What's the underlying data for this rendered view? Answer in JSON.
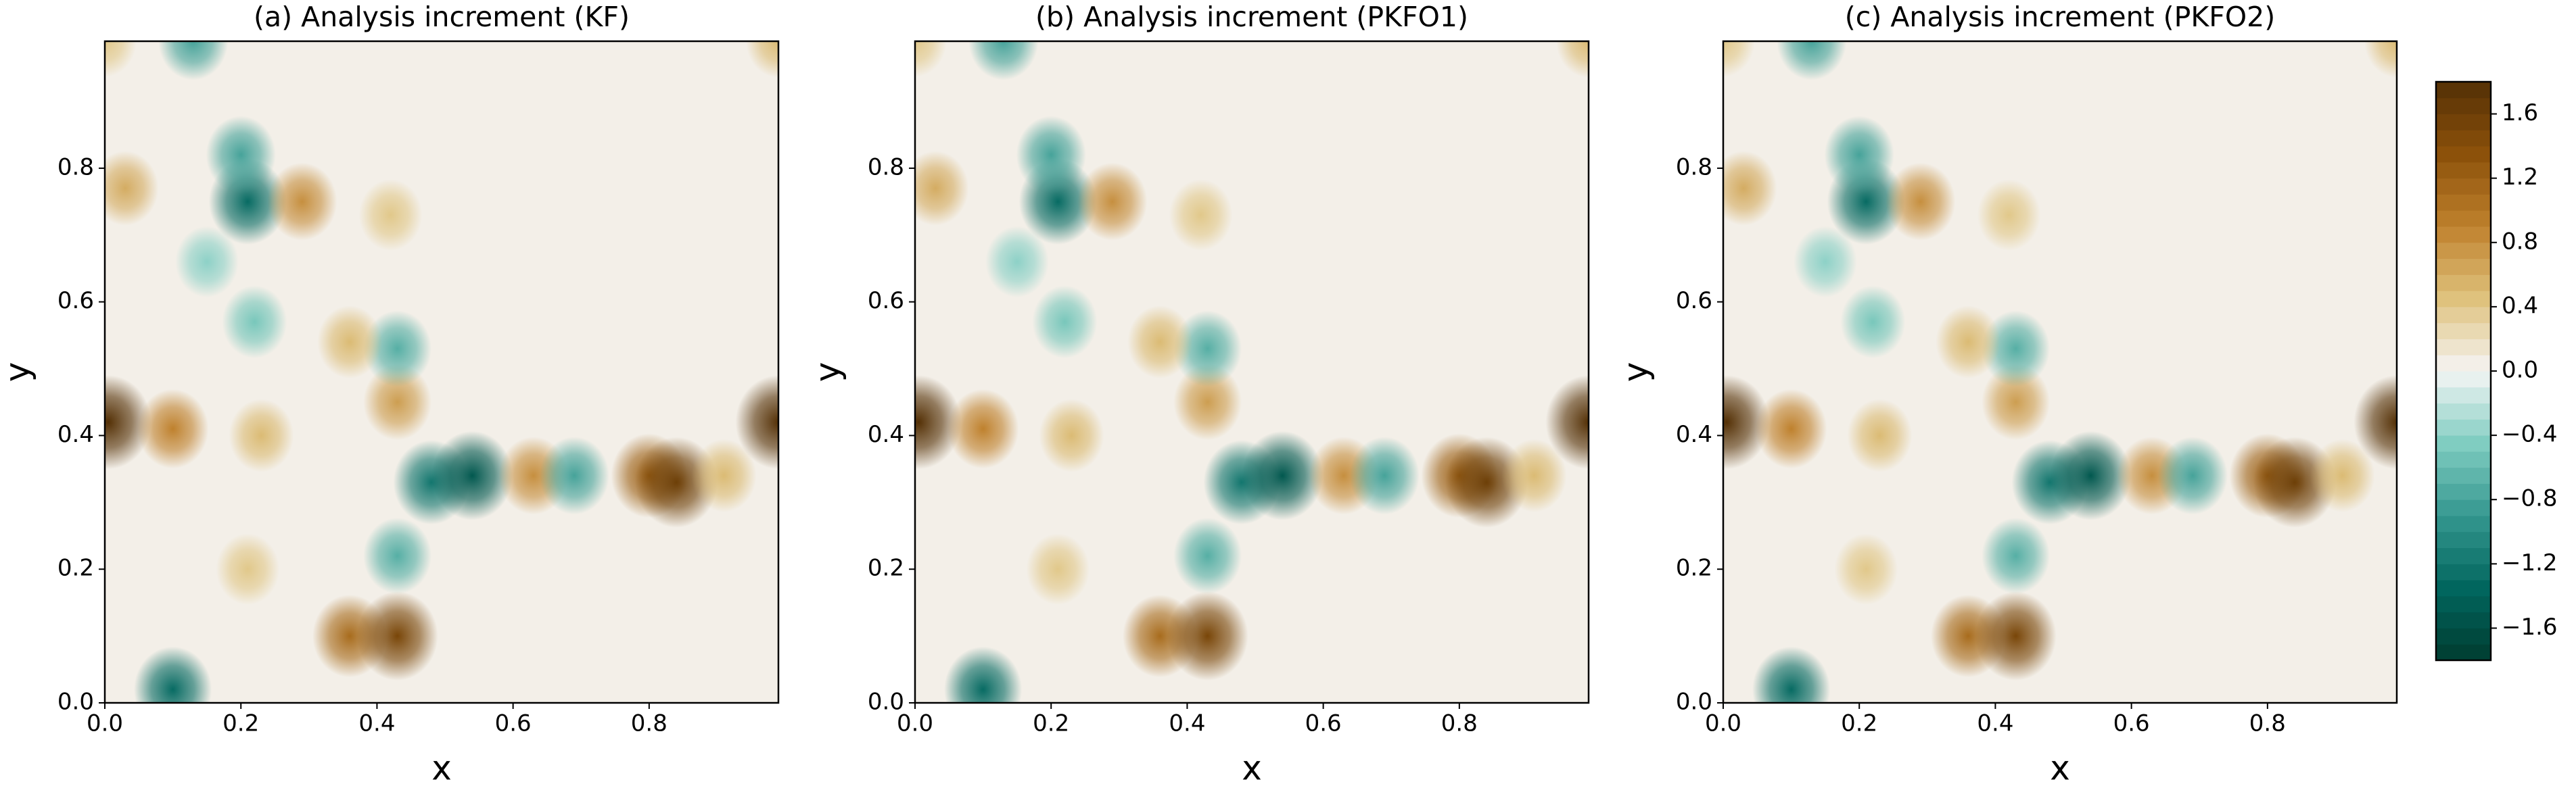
{
  "chart_data": [
    {
      "type": "contour",
      "title": "(a) Analysis increment (KF)",
      "xlabel": "x",
      "ylabel": "y",
      "xlim": [
        0,
        0.99
      ],
      "ylim": [
        0,
        0.99
      ],
      "xticks": [
        {
          "value": 0,
          "label": "0.0"
        },
        0.2,
        0.4,
        0.6,
        0.8
      ],
      "yticks": [
        {
          "value": 0,
          "label": "0.0"
        },
        0.2,
        0.4,
        0.6,
        0.8
      ],
      "background_value": 0.05,
      "features": [
        {
          "x": 0.21,
          "y": 0.75,
          "value": -1.3
        },
        {
          "x": 0.2,
          "y": 0.82,
          "value": -0.8
        },
        {
          "x": 0.29,
          "y": 0.75,
          "value": 0.8
        },
        {
          "x": 0.42,
          "y": 0.73,
          "value": 0.4
        },
        {
          "x": 0.005,
          "y": 0.42,
          "value": 1.8
        },
        {
          "x": 0.1,
          "y": 0.41,
          "value": 0.9
        },
        {
          "x": 0.43,
          "y": 0.45,
          "value": 0.7
        },
        {
          "x": 0.43,
          "y": 0.53,
          "value": -0.7
        },
        {
          "x": 0.48,
          "y": 0.33,
          "value": -1.2
        },
        {
          "x": 0.54,
          "y": 0.34,
          "value": -1.5
        },
        {
          "x": 0.63,
          "y": 0.34,
          "value": 0.8
        },
        {
          "x": 0.69,
          "y": 0.34,
          "value": -0.8
        },
        {
          "x": 0.8,
          "y": 0.34,
          "value": 1.2
        },
        {
          "x": 0.84,
          "y": 0.33,
          "value": 1.6
        },
        {
          "x": 0.91,
          "y": 0.34,
          "value": 0.5
        },
        {
          "x": 0.43,
          "y": 0.22,
          "value": -0.7
        },
        {
          "x": 0.36,
          "y": 0.1,
          "value": 1.1
        },
        {
          "x": 0.43,
          "y": 0.1,
          "value": 1.5
        },
        {
          "x": 0.1,
          "y": 0.02,
          "value": -1.3
        },
        {
          "x": 0.13,
          "y": 0.99,
          "value": -0.8
        },
        {
          "x": 0.99,
          "y": 0.42,
          "value": 1.8
        },
        {
          "x": 0.22,
          "y": 0.57,
          "value": -0.5
        },
        {
          "x": 0.36,
          "y": 0.54,
          "value": 0.5
        },
        {
          "x": 0.23,
          "y": 0.4,
          "value": 0.5
        },
        {
          "x": 0.21,
          "y": 0.2,
          "value": 0.4
        },
        {
          "x": 0.15,
          "y": 0.66,
          "value": -0.4
        },
        {
          "x": 0.03,
          "y": 0.77,
          "value": 0.6
        },
        {
          "x": 0.99,
          "y": 0.99,
          "value": 0.5
        },
        {
          "x": 0.0,
          "y": 0.99,
          "value": 0.4
        }
      ]
    },
    {
      "type": "contour",
      "title": "(b) Analysis increment (PKFO1)",
      "xlabel": "x",
      "ylabel": "y",
      "xlim": [
        0,
        0.99
      ],
      "ylim": [
        0,
        0.99
      ],
      "xticks": [
        {
          "value": 0,
          "label": "0.0"
        },
        0.2,
        0.4,
        0.6,
        0.8
      ],
      "yticks": [
        {
          "value": 0,
          "label": "0.0"
        },
        0.2,
        0.4,
        0.6,
        0.8
      ],
      "background_value": 0.05,
      "features": [
        {
          "x": 0.21,
          "y": 0.75,
          "value": -1.3
        },
        {
          "x": 0.2,
          "y": 0.82,
          "value": -0.8
        },
        {
          "x": 0.29,
          "y": 0.75,
          "value": 0.8
        },
        {
          "x": 0.42,
          "y": 0.73,
          "value": 0.4
        },
        {
          "x": 0.005,
          "y": 0.42,
          "value": 1.8
        },
        {
          "x": 0.1,
          "y": 0.41,
          "value": 0.9
        },
        {
          "x": 0.43,
          "y": 0.45,
          "value": 0.7
        },
        {
          "x": 0.43,
          "y": 0.53,
          "value": -0.7
        },
        {
          "x": 0.48,
          "y": 0.33,
          "value": -1.2
        },
        {
          "x": 0.54,
          "y": 0.34,
          "value": -1.5
        },
        {
          "x": 0.63,
          "y": 0.34,
          "value": 0.8
        },
        {
          "x": 0.69,
          "y": 0.34,
          "value": -0.8
        },
        {
          "x": 0.8,
          "y": 0.34,
          "value": 1.2
        },
        {
          "x": 0.84,
          "y": 0.33,
          "value": 1.6
        },
        {
          "x": 0.91,
          "y": 0.34,
          "value": 0.5
        },
        {
          "x": 0.43,
          "y": 0.22,
          "value": -0.7
        },
        {
          "x": 0.36,
          "y": 0.1,
          "value": 1.1
        },
        {
          "x": 0.43,
          "y": 0.1,
          "value": 1.5
        },
        {
          "x": 0.1,
          "y": 0.02,
          "value": -1.3
        },
        {
          "x": 0.13,
          "y": 0.99,
          "value": -0.8
        },
        {
          "x": 0.99,
          "y": 0.42,
          "value": 1.8
        },
        {
          "x": 0.22,
          "y": 0.57,
          "value": -0.5
        },
        {
          "x": 0.36,
          "y": 0.54,
          "value": 0.5
        },
        {
          "x": 0.23,
          "y": 0.4,
          "value": 0.5
        },
        {
          "x": 0.21,
          "y": 0.2,
          "value": 0.4
        },
        {
          "x": 0.15,
          "y": 0.66,
          "value": -0.4
        },
        {
          "x": 0.03,
          "y": 0.77,
          "value": 0.6
        },
        {
          "x": 0.99,
          "y": 0.99,
          "value": 0.5
        },
        {
          "x": 0.0,
          "y": 0.99,
          "value": 0.4
        }
      ]
    },
    {
      "type": "contour",
      "title": "(c) Analysis increment (PKFO2)",
      "xlabel": "x",
      "ylabel": "y",
      "xlim": [
        0,
        0.99
      ],
      "ylim": [
        0,
        0.99
      ],
      "xticks": [
        {
          "value": 0,
          "label": "0.0"
        },
        0.2,
        0.4,
        0.6,
        0.8
      ],
      "yticks": [
        {
          "value": 0,
          "label": "0.0"
        },
        0.2,
        0.4,
        0.6,
        0.8
      ],
      "background_value": 0.05,
      "features": [
        {
          "x": 0.21,
          "y": 0.75,
          "value": -1.3
        },
        {
          "x": 0.2,
          "y": 0.82,
          "value": -0.8
        },
        {
          "x": 0.29,
          "y": 0.75,
          "value": 0.8
        },
        {
          "x": 0.42,
          "y": 0.73,
          "value": 0.4
        },
        {
          "x": 0.005,
          "y": 0.42,
          "value": 1.8
        },
        {
          "x": 0.1,
          "y": 0.41,
          "value": 0.9
        },
        {
          "x": 0.43,
          "y": 0.45,
          "value": 0.7
        },
        {
          "x": 0.43,
          "y": 0.53,
          "value": -0.7
        },
        {
          "x": 0.48,
          "y": 0.33,
          "value": -1.2
        },
        {
          "x": 0.54,
          "y": 0.34,
          "value": -1.5
        },
        {
          "x": 0.63,
          "y": 0.34,
          "value": 0.8
        },
        {
          "x": 0.69,
          "y": 0.34,
          "value": -0.8
        },
        {
          "x": 0.8,
          "y": 0.34,
          "value": 1.2
        },
        {
          "x": 0.84,
          "y": 0.33,
          "value": 1.6
        },
        {
          "x": 0.91,
          "y": 0.34,
          "value": 0.5
        },
        {
          "x": 0.43,
          "y": 0.22,
          "value": -0.7
        },
        {
          "x": 0.36,
          "y": 0.1,
          "value": 1.1
        },
        {
          "x": 0.43,
          "y": 0.1,
          "value": 1.5
        },
        {
          "x": 0.1,
          "y": 0.02,
          "value": -1.3
        },
        {
          "x": 0.13,
          "y": 0.99,
          "value": -0.8
        },
        {
          "x": 0.99,
          "y": 0.42,
          "value": 1.8
        },
        {
          "x": 0.22,
          "y": 0.57,
          "value": -0.5
        },
        {
          "x": 0.36,
          "y": 0.54,
          "value": 0.5
        },
        {
          "x": 0.23,
          "y": 0.4,
          "value": 0.5
        },
        {
          "x": 0.21,
          "y": 0.2,
          "value": 0.4
        },
        {
          "x": 0.15,
          "y": 0.66,
          "value": -0.4
        },
        {
          "x": 0.03,
          "y": 0.77,
          "value": 0.6
        },
        {
          "x": 0.99,
          "y": 0.99,
          "value": 0.5
        },
        {
          "x": 0.0,
          "y": 0.99,
          "value": 0.4
        }
      ]
    },
    {
      "type": "colorbar",
      "zlim": [
        -1.8,
        1.8
      ],
      "zticks": [
        {
          "value": -1.6,
          "label": "−1.6"
        },
        {
          "value": -1.2,
          "label": "−1.2"
        },
        {
          "value": -0.8,
          "label": "−0.8"
        },
        {
          "value": -0.4,
          "label": "−0.4"
        },
        {
          "value": 0,
          "label": "0.0"
        },
        0.4,
        0.8,
        1.2,
        1.6
      ],
      "colormap": [
        "#003c30",
        "#01665e",
        "#35978f",
        "#80cdc1",
        "#f5f5f5",
        "#dfc27d",
        "#bf812d",
        "#8c510a",
        "#543005"
      ]
    }
  ]
}
